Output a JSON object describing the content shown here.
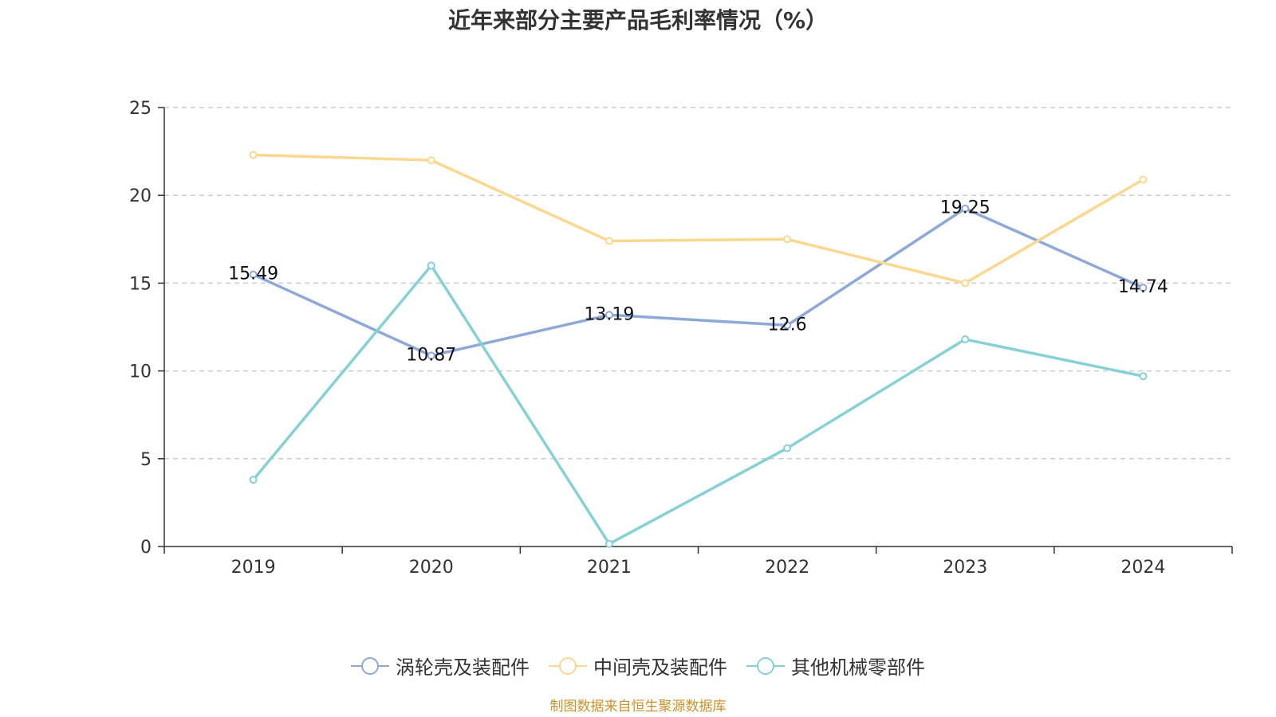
{
  "title": "近年来部分主要产品毛利率情况（%）",
  "source": "制图数据来自恒生聚源数据库",
  "chart_data": {
    "type": "line",
    "categories": [
      "2019",
      "2020",
      "2021",
      "2022",
      "2023",
      "2024"
    ],
    "ylim": [
      0,
      25
    ],
    "yticks": [
      0,
      5,
      10,
      15,
      20,
      25
    ],
    "grid": true,
    "legend_position": "bottom-center",
    "series": [
      {
        "name": "涡轮壳及装配件",
        "color": "#8ea9d8",
        "values": [
          15.49,
          10.87,
          13.19,
          12.6,
          19.25,
          14.74
        ],
        "labels": [
          "15.49",
          "10.87",
          "13.19",
          "12.6",
          "19.25",
          "14.74"
        ]
      },
      {
        "name": "中间壳及装配件",
        "color": "#fad88f",
        "values": [
          22.3,
          22.0,
          17.4,
          17.5,
          15.0,
          20.9
        ]
      },
      {
        "name": "其他机械零部件",
        "color": "#85d1d6",
        "values": [
          3.8,
          16.0,
          0.15,
          5.6,
          11.8,
          9.7
        ]
      }
    ]
  }
}
